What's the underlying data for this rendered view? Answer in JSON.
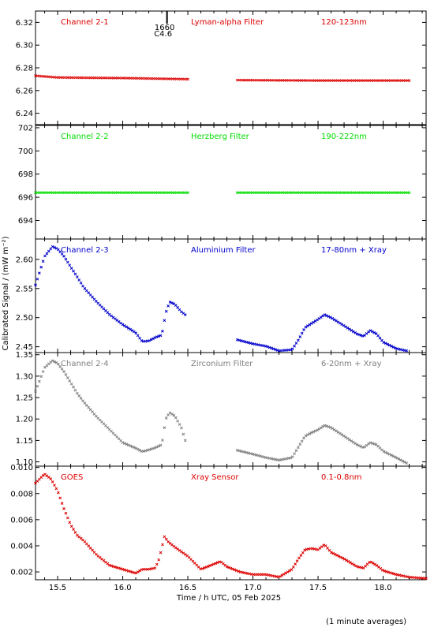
{
  "footer_note": "(1 minute averages)",
  "chart_data": {
    "type": "scatter",
    "xlabel": "Time / h UTC, 05 Feb 2025",
    "ylabel": "Calibrated Signal / (mW m⁻²)",
    "xlim": [
      15.33,
      18.33
    ],
    "xticks": [
      15.5,
      16.0,
      16.5,
      17.0,
      17.5,
      18.0
    ],
    "xtick_labels": [
      "15.5",
      "16.0",
      "16.5",
      "17.0",
      "17.5",
      "18.0"
    ],
    "grid": false,
    "flare_marker": {
      "x": 16.34,
      "labels": [
        "1660",
        "C4.6"
      ]
    },
    "panels": [
      {
        "labels": [
          "Channel 2-1",
          "Lyman-alpha Filter",
          "120-123nm"
        ],
        "color": "#dd0000",
        "ylim": [
          6.23,
          6.33
        ],
        "yticks": [
          6.24,
          6.26,
          6.28,
          6.3,
          6.32
        ],
        "ytick_labels": [
          "6.24",
          "6.26",
          "6.28",
          "6.30",
          "6.32"
        ],
        "segments": [
          {
            "x": [
              15.33,
              15.5,
              16.0,
              16.5
            ],
            "y": [
              6.273,
              6.2715,
              6.271,
              6.27
            ]
          },
          {
            "x": [
              16.88,
              17.5,
              18.2
            ],
            "y": [
              6.2692,
              6.2688,
              6.2688
            ]
          }
        ]
      },
      {
        "labels": [
          "Channel 2-2",
          "Herzberg Filter",
          "190-222nm"
        ],
        "color": "#00dd00",
        "ylim": [
          692.4,
          702.2
        ],
        "yticks": [
          694,
          696,
          698,
          700,
          702
        ],
        "ytick_labels": [
          "694",
          "696",
          "698",
          "700",
          "702"
        ],
        "segments": [
          {
            "x": [
              15.33,
              16.5
            ],
            "y": [
              696.4,
              696.4
            ]
          },
          {
            "x": [
              16.88,
              18.2
            ],
            "y": [
              696.4,
              696.4
            ]
          }
        ]
      },
      {
        "labels": [
          "Channel 2-3",
          "Aluminium Filter",
          "17-80nm + Xray"
        ],
        "color": "#0000cc",
        "ylim": [
          2.44,
          2.635
        ],
        "yticks": [
          2.45,
          2.5,
          2.55,
          2.6
        ],
        "ytick_labels": [
          "2.45",
          "2.50",
          "2.55",
          "2.60"
        ],
        "segments": [
          {
            "x": [
              15.33,
              15.4,
              15.46,
              15.5,
              15.55,
              15.6,
              15.65,
              15.7,
              15.8,
              15.9,
              16.0,
              16.1,
              16.15,
              16.2,
              16.25,
              16.3,
              16.33,
              16.36,
              16.4,
              16.45,
              16.48
            ],
            "y": [
              2.556,
              2.605,
              2.622,
              2.618,
              2.605,
              2.587,
              2.57,
              2.552,
              2.527,
              2.505,
              2.488,
              2.474,
              2.459,
              2.46,
              2.466,
              2.47,
              2.508,
              2.527,
              2.523,
              2.51,
              2.505
            ]
          },
          {
            "x": [
              16.88,
              17.0,
              17.1,
              17.2,
              17.3,
              17.35,
              17.4,
              17.45,
              17.5,
              17.55,
              17.6,
              17.7,
              17.8,
              17.85,
              17.9,
              17.95,
              18.0,
              18.1,
              18.18
            ],
            "y": [
              2.462,
              2.455,
              2.451,
              2.443,
              2.445,
              2.462,
              2.483,
              2.49,
              2.497,
              2.505,
              2.5,
              2.486,
              2.472,
              2.468,
              2.478,
              2.472,
              2.458,
              2.447,
              2.443
            ]
          }
        ]
      },
      {
        "labels": [
          "Channel 2-4",
          "Zirconium Filter",
          "6-20nm + Xray"
        ],
        "color": "#808080",
        "ylim": [
          1.09,
          1.355
        ],
        "yticks": [
          1.1,
          1.15,
          1.2,
          1.25,
          1.3,
          1.35
        ],
        "ytick_labels": [
          "1.10",
          "1.15",
          "1.20",
          "1.25",
          "1.30",
          "1.35"
        ],
        "segments": [
          {
            "x": [
              15.33,
              15.4,
              15.46,
              15.5,
              15.55,
              15.6,
              15.65,
              15.7,
              15.8,
              15.9,
              16.0,
              16.1,
              16.15,
              16.2,
              16.25,
              16.3,
              16.33,
              16.36,
              16.4,
              16.45,
              16.48
            ],
            "y": [
              1.265,
              1.32,
              1.336,
              1.33,
              1.31,
              1.285,
              1.26,
              1.24,
              1.205,
              1.175,
              1.145,
              1.132,
              1.124,
              1.128,
              1.133,
              1.14,
              1.2,
              1.215,
              1.207,
              1.18,
              1.15
            ]
          },
          {
            "x": [
              16.88,
              17.0,
              17.1,
              17.2,
              17.3,
              17.35,
              17.4,
              17.45,
              17.5,
              17.55,
              17.6,
              17.7,
              17.8,
              17.85,
              17.9,
              17.95,
              18.0,
              18.1,
              18.18
            ],
            "y": [
              1.127,
              1.118,
              1.11,
              1.104,
              1.11,
              1.135,
              1.16,
              1.168,
              1.175,
              1.185,
              1.18,
              1.16,
              1.14,
              1.133,
              1.145,
              1.14,
              1.125,
              1.11,
              1.097
            ]
          }
        ]
      },
      {
        "labels": [
          "GOES",
          "Xray Sensor",
          "0.1-0.8nm"
        ],
        "color": "#dd0000",
        "ylim": [
          0.0014,
          0.0101
        ],
        "yticks": [
          0.002,
          0.004,
          0.006,
          0.008,
          0.01
        ],
        "ytick_labels": [
          "0.002",
          "0.004",
          "0.006",
          "0.008",
          "0.010"
        ],
        "segments": [
          {
            "x": [
              15.33,
              15.4,
              15.45,
              15.5,
              15.55,
              15.6,
              15.65,
              15.7,
              15.8,
              15.9,
              16.0,
              16.1,
              16.15,
              16.2,
              16.25,
              16.28,
              16.32,
              16.35,
              16.4,
              16.5,
              16.6,
              16.7,
              16.75,
              16.8,
              16.9,
              17.0,
              17.1,
              17.2,
              17.3,
              17.35,
              17.4,
              17.45,
              17.5,
              17.55,
              17.6,
              17.7,
              17.8,
              17.85,
              17.9,
              17.95,
              18.0,
              18.1,
              18.2,
              18.33
            ],
            "y": [
              0.0088,
              0.0095,
              0.0091,
              0.0082,
              0.0068,
              0.0056,
              0.0048,
              0.0044,
              0.0033,
              0.0025,
              0.0022,
              0.0019,
              0.0022,
              0.0022,
              0.0023,
              0.003,
              0.0047,
              0.0043,
              0.0039,
              0.0032,
              0.0022,
              0.0026,
              0.0028,
              0.0024,
              0.002,
              0.0018,
              0.0018,
              0.0016,
              0.0022,
              0.003,
              0.0037,
              0.0038,
              0.0037,
              0.0041,
              0.0035,
              0.003,
              0.0024,
              0.0023,
              0.0028,
              0.0025,
              0.0021,
              0.0018,
              0.0016,
              0.0015
            ]
          }
        ]
      }
    ]
  }
}
